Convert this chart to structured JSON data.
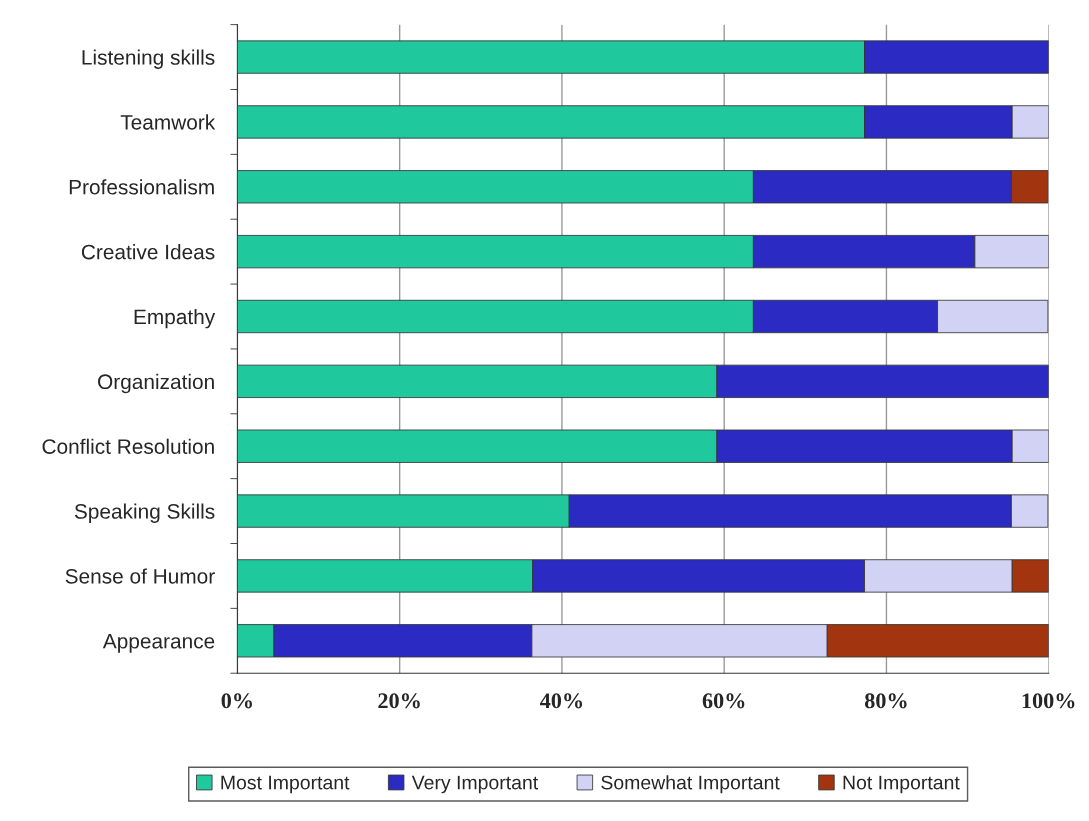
{
  "chart_data": {
    "type": "bar",
    "orientation": "horizontal",
    "stacked": true,
    "categories": [
      "Listening skills",
      "Teamwork",
      "Professionalism",
      "Creative Ideas",
      "Empathy",
      "Organization",
      "Conflict Resolution",
      "Speaking Skills",
      "Sense of Humor",
      "Appearance"
    ],
    "series": [
      {
        "name": "Most Important",
        "color": "#20c89e",
        "values": [
          77.3,
          77.3,
          63.6,
          63.6,
          63.6,
          59.1,
          59.1,
          40.9,
          36.4,
          4.5
        ]
      },
      {
        "name": "Very Important",
        "color": "#2b2bc4",
        "values": [
          22.7,
          18.2,
          31.8,
          27.3,
          22.7,
          40.9,
          36.4,
          54.5,
          40.9,
          31.8
        ]
      },
      {
        "name": "Somewhat Important",
        "color": "#d2d3f4",
        "values": [
          null,
          4.5,
          null,
          9.1,
          13.6,
          null,
          4.5,
          4.5,
          18.2,
          36.4
        ]
      },
      {
        "name": "Not Important",
        "color": "#a33410",
        "values": [
          null,
          null,
          4.5,
          null,
          null,
          null,
          null,
          null,
          4.5,
          27.3
        ]
      }
    ],
    "xlim": [
      0,
      100
    ],
    "xticks": [
      {
        "value": 0,
        "label": "0%"
      },
      {
        "value": 20,
        "label": "20%"
      },
      {
        "value": 40,
        "label": "40%"
      },
      {
        "value": 60,
        "label": "60%"
      },
      {
        "value": 80,
        "label": "80%"
      },
      {
        "value": 100,
        "label": "100%"
      }
    ],
    "grid": "x",
    "legend": "bottom"
  }
}
